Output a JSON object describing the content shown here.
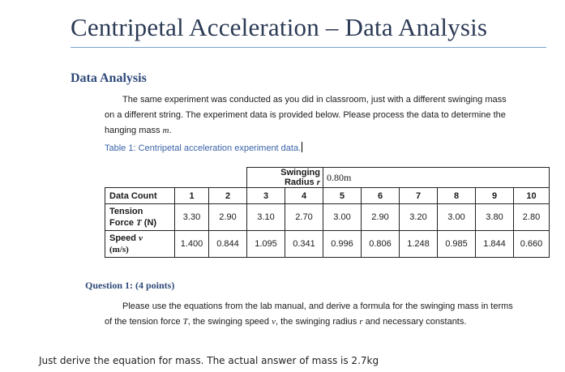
{
  "document": {
    "title": "Centripetal Acceleration – Data Analysis",
    "section_heading": "Data Analysis",
    "intro_line1": "The same experiment was conducted as you did in classroom, just with a different swinging mass",
    "intro_line2": "on a different string. The experiment data is provided below. Please process the data to determine the",
    "intro_line3_prefix": "hanging mass ",
    "intro_line3_var": "m",
    "intro_line3_suffix": ".",
    "table_caption": "Table 1: Centripetal acceleration experiment data."
  },
  "table": {
    "radius_label": "Swinging Radius ",
    "radius_var": "r",
    "radius_value": "0.80m",
    "count_label": "Data Count",
    "counts": [
      "1",
      "2",
      "3",
      "4",
      "5",
      "6",
      "7",
      "8",
      "9",
      "10"
    ],
    "tension_label_line1": "Tension",
    "tension_label_line2_prefix": "Force ",
    "tension_label_var": "T",
    "tension_label_unit": " (N)",
    "tension_values": [
      "3.30",
      "2.90",
      "3.10",
      "2.70",
      "3.00",
      "2.90",
      "3.20",
      "3.00",
      "3.80",
      "2.80"
    ],
    "speed_label_prefix": "Speed ",
    "speed_label_var": "v",
    "speed_label_unit": "(m/s)",
    "speed_values": [
      "1.400",
      "0.844",
      "1.095",
      "0.341",
      "0.996",
      "0.806",
      "1.248",
      "0.985",
      "1.844",
      "0.660"
    ]
  },
  "question": {
    "title": "Question 1: (4 points)",
    "line1": "Please use the equations from the lab manual, and derive a formula for the swinging mass in terms",
    "line2_a": "of the tension force ",
    "line2_T": "T",
    "line2_b": ", the swinging speed ",
    "line2_v": "v",
    "line2_c": ", the swinging radius ",
    "line2_r": "r",
    "line2_d": " and necessary constants."
  },
  "note": "Just derive the equation for mass. The actual answer of mass is 2.7kg"
}
